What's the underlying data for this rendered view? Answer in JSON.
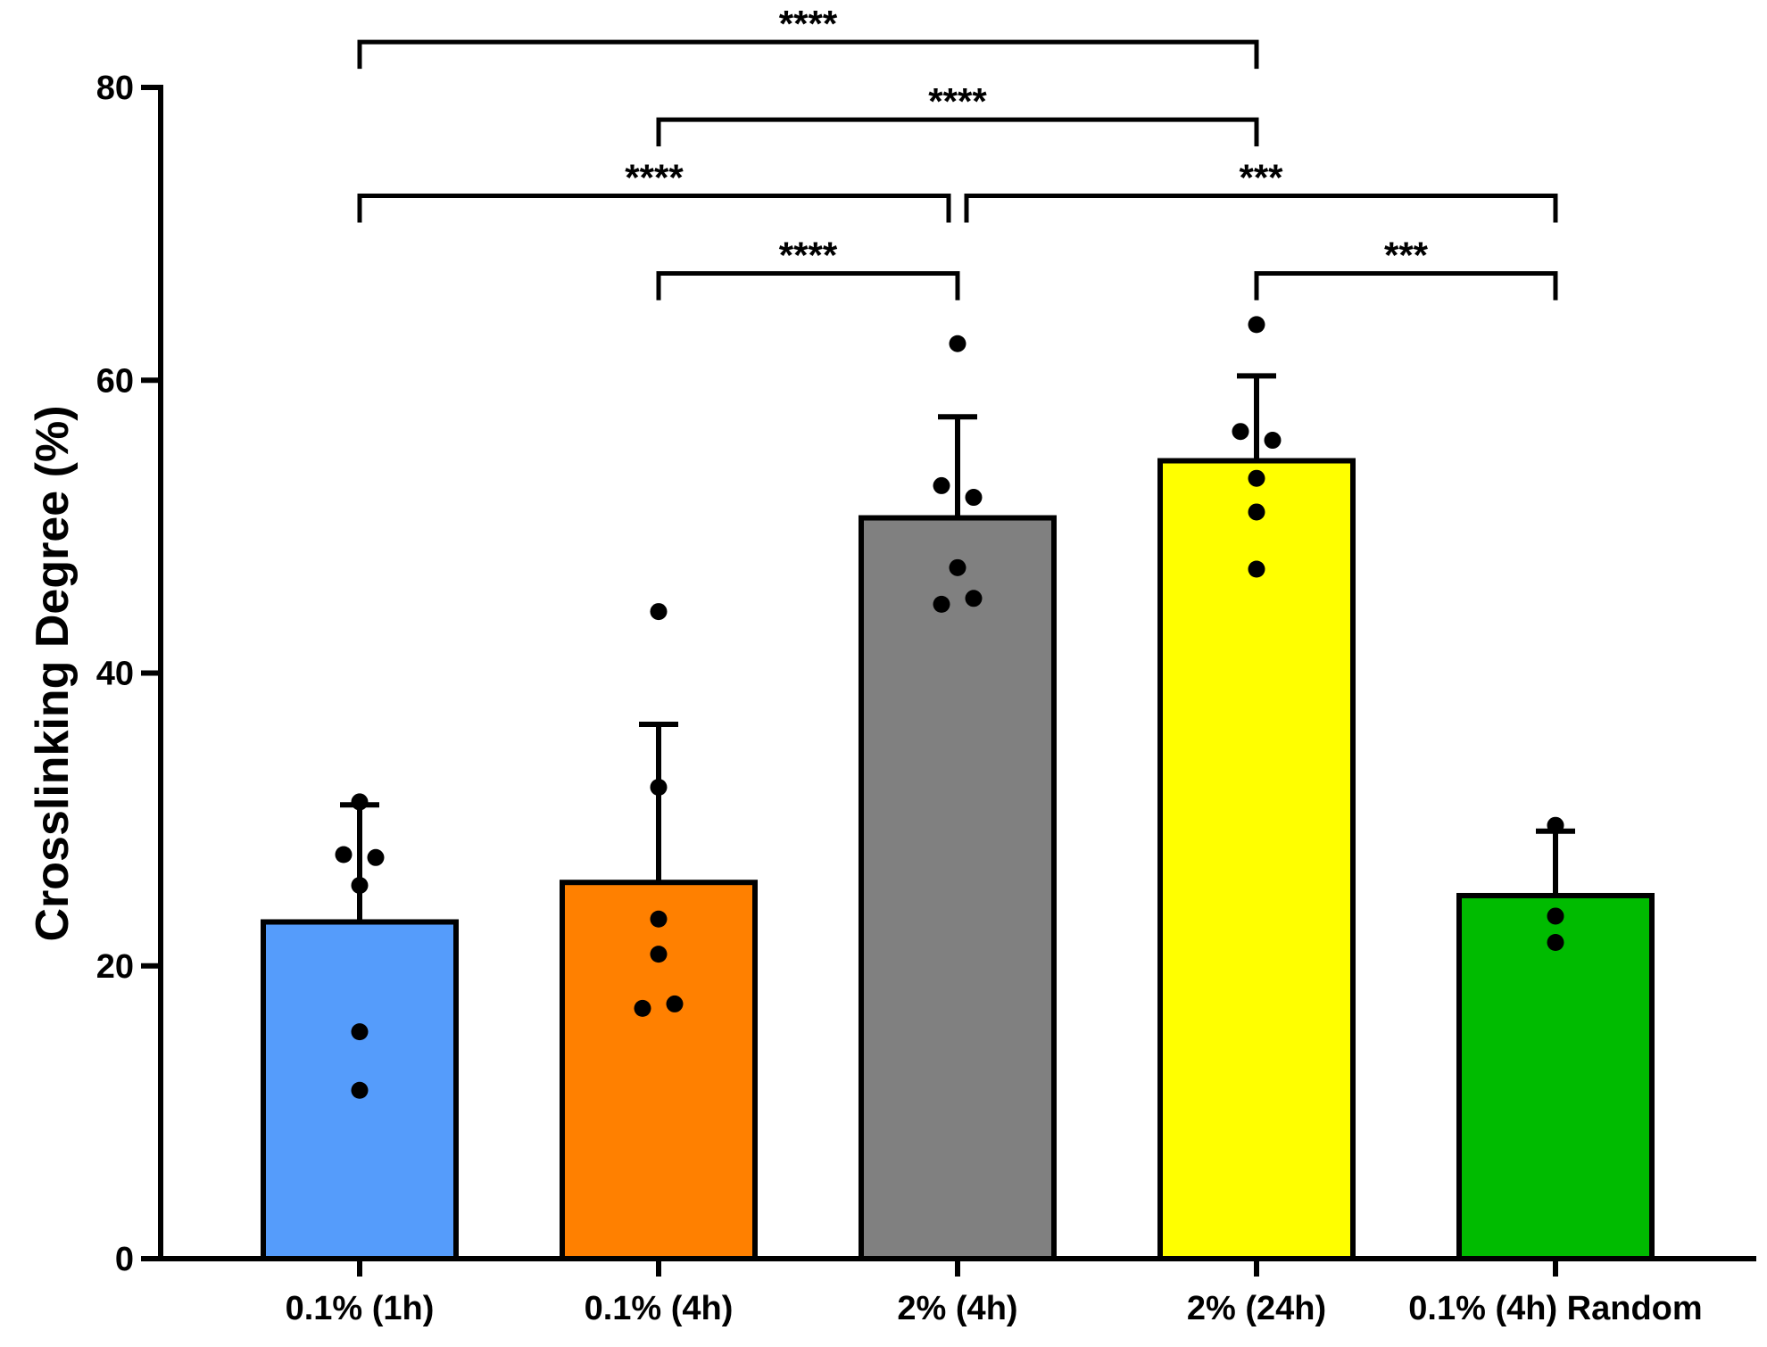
{
  "chart_data": {
    "type": "bar",
    "title": "",
    "xlabel": "",
    "ylabel": "Crosslinking Degree (%)",
    "ylim": [
      0,
      80
    ],
    "yticks": [
      0,
      20,
      40,
      60,
      80
    ],
    "categories": [
      "0.1% (1h)",
      "0.1% (4h)",
      "2% (4h)",
      "2% (24h)",
      "0.1% (4h) Random"
    ],
    "values": [
      23.0,
      25.7,
      50.6,
      54.5,
      24.8
    ],
    "errors": [
      8.0,
      10.8,
      6.9,
      5.8,
      4.4
    ],
    "colors": [
      "#559cfb",
      "#ff8000",
      "#808080",
      "#ffff00",
      "#00bb00"
    ],
    "points": [
      [
        31.2,
        27.6,
        27.4,
        25.5,
        15.5,
        11.5
      ],
      [
        44.2,
        32.2,
        23.2,
        20.8,
        17.4,
        17.1
      ],
      [
        62.5,
        52.8,
        52.0,
        47.2,
        45.1,
        44.7
      ],
      [
        63.8,
        56.5,
        55.9,
        53.3,
        51.0,
        47.1
      ],
      [
        29.6,
        23.4,
        21.6
      ]
    ],
    "significance": [
      {
        "from": 0,
        "to": 3,
        "label": "****",
        "y": 83.1
      },
      {
        "from": 1,
        "to": 3,
        "label": "****",
        "y": 77.8
      },
      {
        "from": 0,
        "to": 2,
        "label": "****",
        "y": 72.6
      },
      {
        "from": 2,
        "to": 4,
        "label": "***",
        "y": 72.6
      },
      {
        "from": 1,
        "to": 2,
        "label": "****",
        "y": 67.3
      },
      {
        "from": 3,
        "to": 4,
        "label": "***",
        "y": 67.3
      }
    ]
  }
}
